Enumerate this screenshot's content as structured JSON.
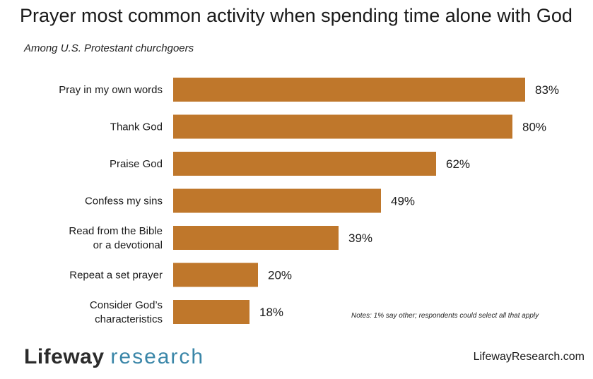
{
  "chart_data": {
    "type": "bar",
    "orientation": "horizontal",
    "title": "Prayer most common activity when spending time alone with God",
    "subtitle": "Among U.S. Protestant churchgoers",
    "categories": [
      [
        "Pray in my own words"
      ],
      [
        "Thank God"
      ],
      [
        "Praise God"
      ],
      [
        "Confess my sins"
      ],
      [
        "Read from the Bible",
        "or a devotional"
      ],
      [
        "Repeat a set prayer"
      ],
      [
        "Consider God’s",
        "characteristics"
      ]
    ],
    "values": [
      83,
      80,
      62,
      49,
      39,
      20,
      18
    ],
    "value_labels": [
      "83%",
      "80%",
      "62%",
      "49%",
      "39%",
      "20%",
      "18%"
    ],
    "xlim": [
      0,
      100
    ],
    "unit": "%",
    "grid": false,
    "bar_color": "#bf772b",
    "note": "Notes: 1% say other; respondents could select all that apply"
  },
  "footer": {
    "logo_word1": "Lifeway",
    "logo_word2": "research",
    "website": "LifewayResearch.com"
  },
  "colors": {
    "bar": "#bf772b",
    "logo_accent": "#3a86a8"
  }
}
